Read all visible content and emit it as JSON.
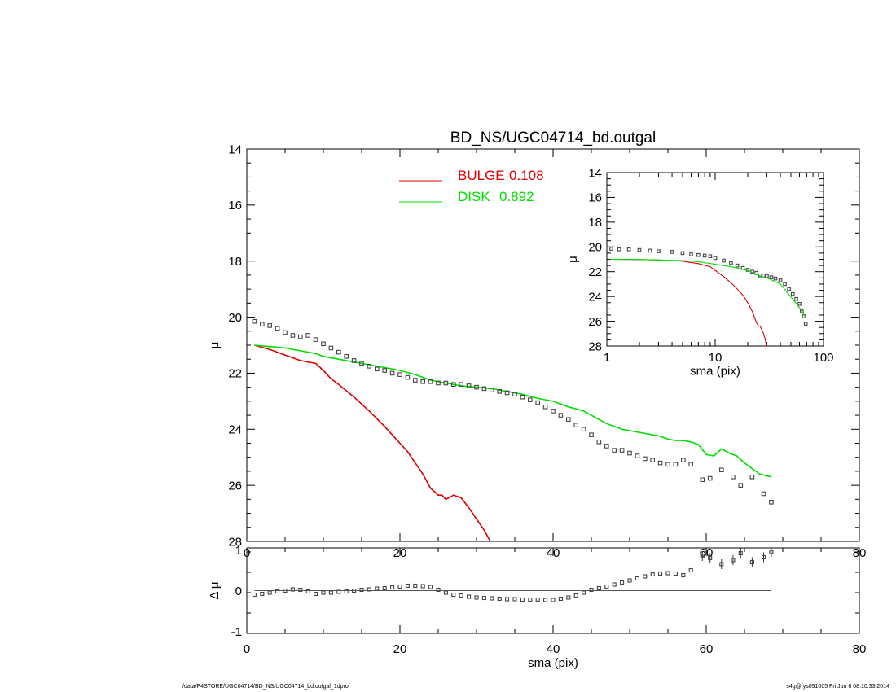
{
  "chart_data": [
    {
      "type": "scatter",
      "title": "BD_NS/UGC04714_bd.outgal",
      "xlabel": "sma (pix)",
      "ylabel": "μ",
      "xlim": [
        0,
        80
      ],
      "ylim": [
        28,
        14
      ],
      "x_ticks": [
        "0",
        "20",
        "40",
        "60",
        "80"
      ],
      "y_ticks": [
        "14",
        "16",
        "18",
        "20",
        "22",
        "24",
        "26",
        "28"
      ],
      "legend_placement": "top-center",
      "legend": [
        {
          "label": "BULGE",
          "value": "0.108",
          "color": "#dd0000"
        },
        {
          "label": "DISK",
          "value": "0.892",
          "color": "#00dd00"
        }
      ],
      "series": [
        {
          "name": "BULGE",
          "kind": "line",
          "color": "#dd0000",
          "x": [
            1,
            3,
            5,
            7,
            8,
            9,
            10,
            11,
            12,
            14,
            16,
            18,
            19,
            20,
            21,
            22,
            23,
            24,
            25,
            25.5,
            26,
            27,
            28,
            29,
            30,
            31,
            31.8
          ],
          "y": [
            21.0,
            21.15,
            21.35,
            21.55,
            21.6,
            21.65,
            21.9,
            22.2,
            22.4,
            22.85,
            23.35,
            23.9,
            24.2,
            24.5,
            24.8,
            25.2,
            25.6,
            26.1,
            26.35,
            26.35,
            26.5,
            26.35,
            26.45,
            26.8,
            27.2,
            27.6,
            28.0
          ]
        },
        {
          "name": "DISK",
          "kind": "line",
          "color": "#00dd00",
          "x": [
            1,
            3,
            5,
            7,
            9,
            10,
            12,
            14,
            16,
            18,
            20,
            22,
            24,
            26,
            28,
            30,
            32,
            34,
            36,
            38,
            40,
            42,
            44,
            45,
            46,
            47,
            48,
            49,
            50,
            51,
            52,
            53,
            54,
            55,
            56,
            57,
            58,
            59,
            60,
            61,
            62,
            63,
            64,
            65,
            66,
            67,
            68.5
          ],
          "y": [
            21.0,
            21.05,
            21.1,
            21.2,
            21.3,
            21.4,
            21.5,
            21.6,
            21.7,
            21.8,
            21.9,
            22.05,
            22.25,
            22.35,
            22.45,
            22.5,
            22.55,
            22.65,
            22.75,
            22.9,
            23.0,
            23.2,
            23.35,
            23.5,
            23.65,
            23.8,
            23.9,
            24.0,
            24.05,
            24.1,
            24.15,
            24.2,
            24.25,
            24.35,
            24.4,
            24.4,
            24.45,
            24.55,
            24.9,
            24.95,
            24.7,
            24.85,
            24.95,
            25.2,
            25.4,
            25.6,
            25.7
          ]
        },
        {
          "name": "",
          "kind": "points",
          "color": "#444444",
          "x": [
            1,
            2,
            3,
            4,
            5,
            6,
            7,
            8,
            9,
            10,
            11,
            12,
            13,
            14,
            15,
            16,
            17,
            18,
            19,
            20,
            21,
            22,
            23,
            24,
            25,
            26,
            27,
            28,
            29,
            30,
            31,
            32,
            33,
            34,
            35,
            36,
            37,
            38,
            39,
            40,
            41,
            42,
            43,
            44,
            45,
            46,
            47,
            48,
            49,
            50,
            51,
            52,
            53,
            54,
            55,
            56,
            57,
            58,
            59.5,
            60.5,
            62,
            63.5,
            64.5,
            66,
            67.5,
            68.5
          ],
          "y": [
            20.15,
            20.25,
            20.3,
            20.4,
            20.55,
            20.65,
            20.7,
            20.65,
            20.8,
            20.95,
            21.1,
            21.25,
            21.4,
            21.55,
            21.65,
            21.75,
            21.85,
            21.9,
            22.0,
            22.05,
            22.15,
            22.25,
            22.3,
            22.3,
            22.35,
            22.35,
            22.4,
            22.4,
            22.45,
            22.5,
            22.55,
            22.6,
            22.65,
            22.7,
            22.75,
            22.85,
            22.95,
            23.05,
            23.2,
            23.35,
            23.5,
            23.65,
            23.85,
            24.0,
            24.2,
            24.45,
            24.6,
            24.75,
            24.75,
            24.85,
            24.95,
            25.05,
            25.1,
            25.2,
            25.25,
            25.25,
            25.1,
            25.25,
            25.8,
            25.75,
            25.45,
            25.7,
            26.0,
            25.7,
            26.3,
            26.6
          ]
        }
      ]
    },
    {
      "type": "scatter",
      "title": "",
      "xlabel": "sma (pix)",
      "ylabel": "Δ μ",
      "xlim": [
        0,
        80
      ],
      "ylim": [
        -1.05,
        1.05
      ],
      "x_ticks": [],
      "y_ticks": [
        "1",
        "0",
        "-1"
      ],
      "series": [
        {
          "name": "",
          "kind": "points",
          "color": "#444444",
          "x": [
            1,
            2,
            3,
            4,
            5,
            6,
            7,
            8,
            9,
            10,
            11,
            12,
            13,
            14,
            15,
            16,
            17,
            18,
            19,
            20,
            21,
            22,
            23,
            24,
            25,
            26,
            27,
            28,
            29,
            30,
            31,
            32,
            33,
            34,
            35,
            36,
            37,
            38,
            39,
            40,
            41,
            42,
            43,
            44,
            45,
            46,
            47,
            48,
            49,
            50,
            51,
            52,
            53,
            54,
            55,
            56,
            57,
            58,
            59.5,
            60.5,
            62,
            63.5,
            64.5,
            66,
            67.5,
            68.5
          ],
          "y": [
            -0.1,
            -0.08,
            -0.05,
            -0.02,
            0.0,
            0.03,
            0.02,
            -0.02,
            -0.08,
            -0.05,
            -0.05,
            -0.03,
            -0.02,
            0.0,
            0.02,
            0.03,
            0.05,
            0.06,
            0.08,
            0.1,
            0.12,
            0.12,
            0.11,
            0.09,
            0.02,
            -0.05,
            -0.1,
            -0.12,
            -0.15,
            -0.17,
            -0.18,
            -0.19,
            -0.2,
            -0.21,
            -0.21,
            -0.22,
            -0.22,
            -0.22,
            -0.23,
            -0.23,
            -0.2,
            -0.17,
            -0.12,
            -0.05,
            0.02,
            0.06,
            0.1,
            0.15,
            0.2,
            0.25,
            0.3,
            0.35,
            0.4,
            0.42,
            0.43,
            0.42,
            0.38,
            0.5,
            0.85,
            0.8,
            0.65,
            0.75,
            0.92,
            0.7,
            0.82,
            0.95
          ]
        },
        {
          "name": "",
          "kind": "hline",
          "color": "#555555",
          "x": [
            1,
            68.5
          ],
          "y": [
            0,
            0
          ]
        }
      ]
    },
    {
      "type": "scatter",
      "title": "",
      "xlabel": "sma (pix)",
      "ylabel": "μ",
      "x_scale": "log",
      "xlim": [
        1,
        100
      ],
      "ylim": [
        28,
        14
      ],
      "x_ticks": [
        "1",
        "10",
        "100"
      ],
      "y_ticks": [
        "14",
        "16",
        "18",
        "20",
        "22",
        "24",
        "26",
        "28"
      ],
      "series": [
        {
          "name": "",
          "kind": "points",
          "color": "#444444",
          "x": [
            1.1,
            1.3,
            1.6,
            2,
            2.5,
            3,
            4,
            5,
            6,
            7,
            8,
            9,
            10,
            12,
            14,
            16,
            18,
            20,
            22,
            24,
            26,
            28,
            30,
            33,
            36,
            40,
            44,
            48,
            52,
            56,
            60,
            63,
            66,
            68.5
          ],
          "y": [
            20.15,
            20.2,
            20.2,
            20.25,
            20.3,
            20.35,
            20.4,
            20.5,
            20.6,
            20.65,
            20.7,
            20.75,
            20.9,
            21.1,
            21.3,
            21.5,
            21.7,
            21.85,
            22.0,
            22.1,
            22.3,
            22.3,
            22.35,
            22.45,
            22.55,
            22.7,
            23.0,
            23.4,
            23.8,
            24.2,
            24.6,
            25.2,
            25.6,
            26.2
          ]
        },
        {
          "name": "BULGE",
          "kind": "line",
          "color": "#dd0000",
          "x": [
            1.1,
            2,
            3,
            5,
            7,
            9,
            10,
            12,
            14,
            16,
            18,
            20,
            22,
            24,
            25,
            26,
            28,
            30
          ],
          "y": [
            21.0,
            21.02,
            21.05,
            21.15,
            21.35,
            21.6,
            21.9,
            22.4,
            22.9,
            23.4,
            23.9,
            24.5,
            25.2,
            26.1,
            26.35,
            26.4,
            27.0,
            28.0
          ]
        },
        {
          "name": "DISK",
          "kind": "line",
          "color": "#00dd00",
          "x": [
            1.1,
            2,
            3,
            5,
            7,
            10,
            14,
            20,
            26,
            30,
            40,
            50,
            60,
            68.5
          ],
          "y": [
            21.0,
            21.02,
            21.05,
            21.1,
            21.2,
            21.4,
            21.6,
            21.9,
            22.35,
            22.5,
            23.0,
            24.05,
            24.9,
            25.7
          ]
        }
      ]
    }
  ],
  "footer": {
    "left": "/data/P4STORE/UGC04714/BD_NS/UGC04714_bd.outgal_1dprof",
    "right": "s4g@fys091005  Fri Jun  6 08:10:33 2014"
  }
}
